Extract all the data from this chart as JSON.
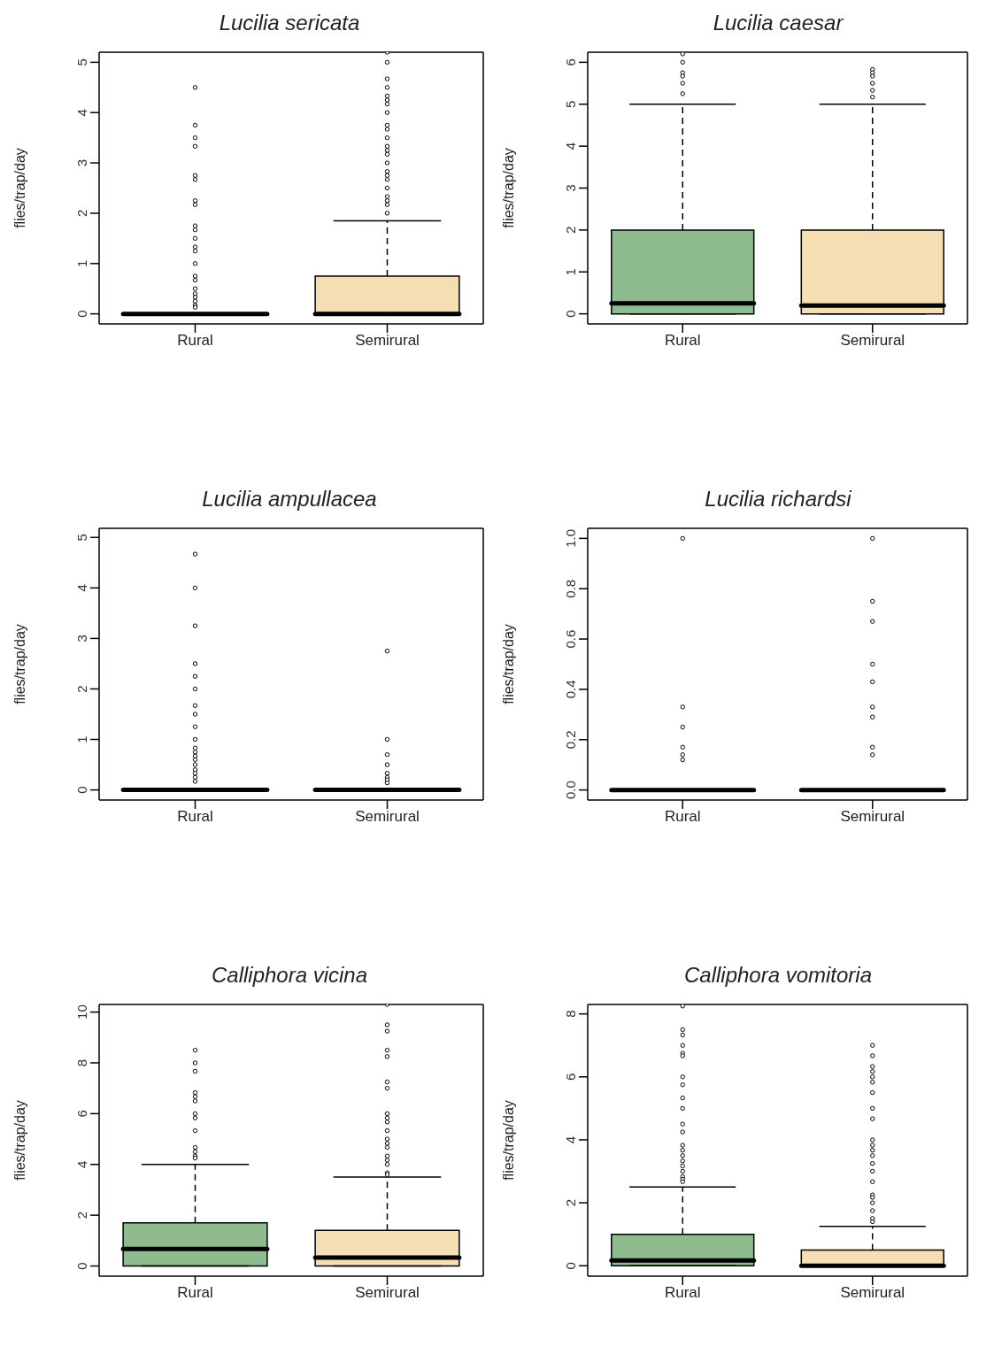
{
  "chart_data": [
    {
      "type": "box",
      "title": "Lucilia sericata",
      "ylabel": "flies/trap/day",
      "categories": [
        "Rural",
        "Semirural"
      ],
      "colors": [
        null,
        "#f5deb3"
      ],
      "marker": "circle",
      "ylim": [
        -0.2,
        5.2
      ],
      "yticks": [
        0,
        1,
        2,
        3,
        4,
        5
      ],
      "boxes": [
        {
          "low": 0,
          "q1": 0,
          "median": 0,
          "q3": 0,
          "high": 0,
          "outliers": [
            4.5,
            3.75,
            3.5,
            3.33,
            2.75,
            2.67,
            2.25,
            2.17,
            1.75,
            1.67,
            1.5,
            1.33,
            1.25,
            1,
            0.75,
            0.67,
            0.5,
            0.4,
            0.33,
            0.25,
            0.17,
            0.13
          ]
        },
        {
          "low": 0,
          "q1": 0,
          "median": 0,
          "q3": 0.75,
          "high": 1.85,
          "outliers": [
            5.2,
            5,
            4.67,
            4.5,
            4.33,
            4.25,
            4.17,
            4,
            3.75,
            3.67,
            3.5,
            3.33,
            3.25,
            3.17,
            3,
            2.83,
            2.75,
            2.67,
            2.5,
            2.33,
            2.25,
            2.17,
            2
          ]
        }
      ]
    },
    {
      "type": "box",
      "title": "Lucilia caesar",
      "ylabel": "flies/trap/day",
      "categories": [
        "Rural",
        "Semirural"
      ],
      "colors": [
        "#8fbc8f",
        "#f5deb3"
      ],
      "marker": "circle",
      "ylim": [
        -0.24,
        6.24
      ],
      "yticks": [
        0,
        1,
        2,
        3,
        4,
        5,
        6
      ],
      "boxes": [
        {
          "low": 0,
          "q1": 0,
          "median": 0.25,
          "q3": 2,
          "high": 5,
          "outliers": [
            6.2,
            6,
            5.75,
            5.67,
            5.5,
            5.25
          ]
        },
        {
          "low": 0,
          "q1": 0,
          "median": 0.2,
          "q3": 2,
          "high": 5,
          "outliers": [
            5.83,
            5.75,
            5.67,
            5.5,
            5.33,
            5.17
          ]
        }
      ]
    },
    {
      "type": "box",
      "title": "Lucilia ampullacea",
      "ylabel": "flies/trap/day",
      "categories": [
        "Rural",
        "Semirural"
      ],
      "marker": "circle",
      "ylim": [
        -0.2,
        5.18
      ],
      "yticks": [
        0,
        1,
        2,
        3,
        4,
        5
      ],
      "boxes": [
        {
          "low": 0,
          "q1": 0,
          "median": 0,
          "q3": 0,
          "high": 0,
          "outliers": [
            4.67,
            4,
            3.25,
            2.5,
            2.25,
            2,
            1.67,
            1.5,
            1.25,
            1,
            0.83,
            0.75,
            0.67,
            0.6,
            0.5,
            0.4,
            0.33,
            0.25,
            0.17
          ]
        },
        {
          "low": 0,
          "q1": 0,
          "median": 0,
          "q3": 0,
          "high": 0,
          "outliers": [
            2.75,
            1,
            0.7,
            0.5,
            0.33,
            0.25,
            0.2,
            0.14
          ]
        }
      ]
    },
    {
      "type": "box",
      "title": "Lucilia richardsi",
      "ylabel": "flies/trap/day",
      "categories": [
        "Rural",
        "Semirural"
      ],
      "marker": "circle",
      "ylim": [
        -0.04,
        1.04
      ],
      "yticks": [
        {
          "value": 0,
          "label": "0.0"
        },
        {
          "value": 0.2,
          "label": "0.2"
        },
        {
          "value": 0.4,
          "label": "0.4"
        },
        {
          "value": 0.6,
          "label": "0.6"
        },
        {
          "value": 0.8,
          "label": "0.8"
        },
        {
          "value": 1,
          "label": "1.0"
        }
      ],
      "boxes": [
        {
          "low": 0,
          "q1": 0,
          "median": 0,
          "q3": 0,
          "high": 0,
          "outliers": [
            1,
            0.33,
            0.25,
            0.17,
            0.14,
            0.12
          ]
        },
        {
          "low": 0,
          "q1": 0,
          "median": 0,
          "q3": 0,
          "high": 0,
          "outliers": [
            1,
            0.75,
            0.67,
            0.5,
            0.43,
            0.33,
            0.29,
            0.17,
            0.14
          ]
        }
      ]
    },
    {
      "type": "box",
      "title": "Calliphora vicina",
      "ylabel": "flies/trap/day",
      "categories": [
        "Rural",
        "Semirural"
      ],
      "colors": [
        "#8fbc8f",
        "#f5deb3"
      ],
      "marker": "circle",
      "ylim": [
        -0.4,
        10.3
      ],
      "yticks": [
        0,
        2,
        4,
        6,
        8,
        10
      ],
      "boxes": [
        {
          "low": 0,
          "q1": 0,
          "median": 0.67,
          "q3": 1.7,
          "high": 4,
          "outliers": [
            8.5,
            8,
            7.67,
            6.83,
            6.67,
            6.5,
            6,
            5.83,
            5.33,
            4.67,
            4.5,
            4.33,
            4.25
          ]
        },
        {
          "low": 0,
          "q1": 0,
          "median": 0.33,
          "q3": 1.4,
          "high": 3.5,
          "outliers": [
            10.3,
            9.5,
            9.25,
            8.5,
            8.25,
            7.25,
            7,
            6,
            5.83,
            5.67,
            5.33,
            5,
            4.83,
            4.67,
            4.33,
            4.17,
            4,
            3.67,
            3.6
          ]
        }
      ]
    },
    {
      "type": "box",
      "title": "Calliphora vomitoria",
      "ylabel": "flies/trap/day",
      "categories": [
        "Rural",
        "Semirural"
      ],
      "colors": [
        "#8fbc8f",
        "#f5deb3"
      ],
      "marker": "circle",
      "ylim": [
        -0.33,
        8.3
      ],
      "yticks": [
        0,
        2,
        4,
        6,
        8
      ],
      "boxes": [
        {
          "low": 0,
          "q1": 0,
          "median": 0.17,
          "q3": 1,
          "high": 2.5,
          "outliers": [
            8.25,
            7.5,
            7.33,
            7,
            6.75,
            6.67,
            6,
            5.75,
            5.33,
            5,
            4.5,
            4.25,
            3.83,
            3.67,
            3.5,
            3.33,
            3.17,
            3,
            2.83,
            2.75,
            2.67
          ]
        },
        {
          "low": 0,
          "q1": 0,
          "median": 0,
          "q3": 0.5,
          "high": 1.25,
          "outliers": [
            7,
            6.67,
            6.33,
            6.17,
            6,
            5.83,
            5.5,
            5,
            4.67,
            4,
            3.83,
            3.67,
            3.5,
            3.25,
            3,
            2.67,
            2.25,
            2.17,
            2,
            1.75,
            1.5,
            1.4
          ]
        }
      ]
    }
  ]
}
